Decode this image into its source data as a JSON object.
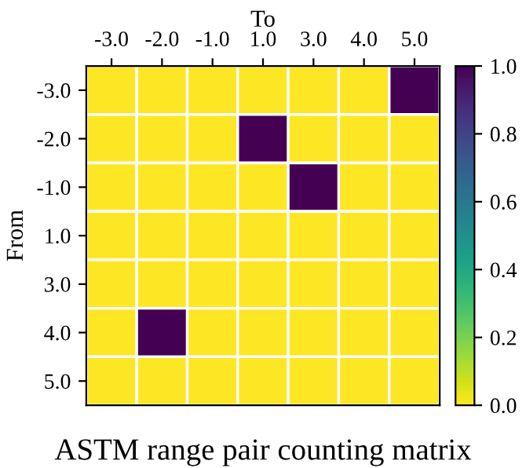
{
  "chart_data": {
    "type": "heatmap",
    "title": "ASTM range pair counting matrix",
    "xlabel": "To",
    "ylabel": "From",
    "categories": [
      "-3.0",
      "-2.0",
      "-1.0",
      "1.0",
      "3.0",
      "4.0",
      "5.0"
    ],
    "y_categories": [
      "-3.0",
      "-2.0",
      "-1.0",
      "1.0",
      "3.0",
      "4.0",
      "5.0"
    ],
    "cells": [
      [
        0,
        0,
        0,
        0,
        0,
        0,
        1
      ],
      [
        0,
        0,
        0,
        1,
        0,
        0,
        0
      ],
      [
        0,
        0,
        0,
        0,
        1,
        0,
        0
      ],
      [
        0,
        0,
        0,
        0,
        0,
        0,
        0
      ],
      [
        0,
        0,
        0,
        0,
        0,
        0,
        0
      ],
      [
        0,
        1,
        0,
        0,
        0,
        0,
        0
      ],
      [
        0,
        0,
        0,
        0,
        0,
        0,
        0
      ]
    ],
    "clim": [
      0,
      1
    ],
    "cticks": [
      {
        "value": 0,
        "label": "0.0"
      },
      {
        "value": 0.2,
        "label": "0.2"
      },
      {
        "value": 0.4,
        "label": "0.4"
      },
      {
        "value": 0.6,
        "label": "0.6"
      },
      {
        "value": 0.8,
        "label": "0.8"
      },
      {
        "value": 1,
        "label": "1.0"
      }
    ]
  }
}
